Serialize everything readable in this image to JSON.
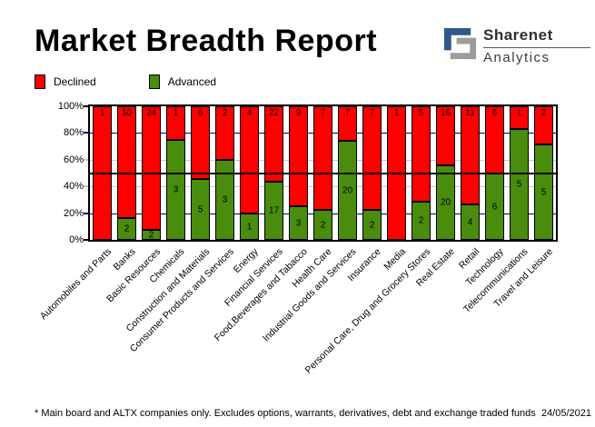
{
  "header": {
    "title": "Market Breadth Report",
    "logo": {
      "name": "Sharenet",
      "tagline": "Analytics",
      "brand_blue": "#2d5a88",
      "brand_gray": "#9c9c9c"
    }
  },
  "legend": {
    "declined": "Declined",
    "advanced": "Advanced"
  },
  "chart_data": {
    "type": "bar",
    "stacked": true,
    "normalized_percent": true,
    "title": "Market Breadth Report",
    "categories": [
      "Automobiles and Parts",
      "Banks",
      "Basic Resources",
      "Chemicals",
      "Construction and Materials",
      "Consumer Products and Services",
      "Energy",
      "Financial Services",
      "Food,Beverages and Tabacco",
      "Health Care",
      "Industrial Goods and Services",
      "Insurance",
      "Media",
      "Personal Care, Drug and Grocery Stores",
      "Real Estate",
      "Retail",
      "Technology",
      "Telecommunications",
      "Travel and Leisure"
    ],
    "series": [
      {
        "name": "Declined",
        "color": "#ff0000",
        "values": [
          1,
          10,
          24,
          1,
          6,
          2,
          4,
          22,
          9,
          7,
          7,
          7,
          1,
          5,
          16,
          11,
          6,
          1,
          2
        ]
      },
      {
        "name": "Advanced",
        "color": "#4a8c0e",
        "values": [
          0,
          2,
          2,
          3,
          5,
          3,
          1,
          17,
          3,
          2,
          20,
          2,
          0,
          2,
          20,
          4,
          6,
          5,
          5
        ]
      }
    ],
    "ylim": [
      0,
      100
    ],
    "y_ticks": [
      {
        "pct": 0,
        "label": "0%",
        "color": "#000000"
      },
      {
        "pct": 20,
        "label": "20%",
        "color": "#000080"
      },
      {
        "pct": 40,
        "label": "40%",
        "color": "#c8c8c8"
      },
      {
        "pct": 60,
        "label": "60%",
        "color": "#c8c8c8"
      },
      {
        "pct": 80,
        "label": "80%",
        "color": "#000080"
      },
      {
        "pct": 100,
        "label": "100%",
        "color": "#000000"
      }
    ],
    "midline": {
      "pct": 50,
      "color": "#000000"
    },
    "grid": "horizontal dashes visible between bars; solid black line at 50% drawn over bars",
    "legend_position": "top-left"
  },
  "footer": {
    "note": "* Main board and ALTX companies only. Excludes options, warrants, derivatives, debt and exchange traded funds",
    "date": "24/05/2021"
  }
}
